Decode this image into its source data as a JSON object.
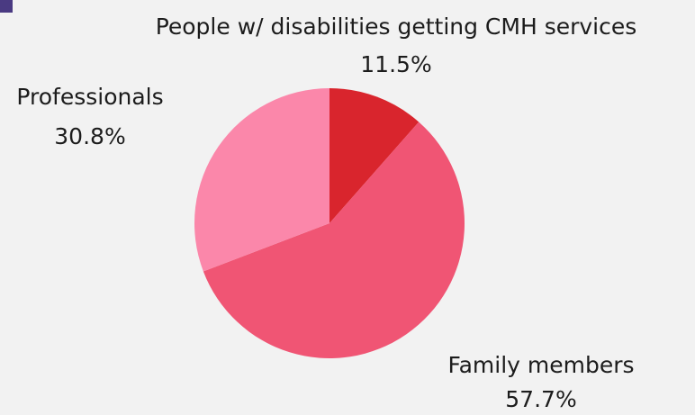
{
  "chart_data": {
    "type": "pie",
    "title": "",
    "slices": [
      {
        "label": "People w/ disabilities getting CMH services",
        "value": 11.5,
        "value_label": "11.5%",
        "color": "#d9252d"
      },
      {
        "label": "Family members",
        "value": 57.7,
        "value_label": "57.7%",
        "color": "#f05574"
      },
      {
        "label": "Professionals",
        "value": 30.8,
        "value_label": "30.8%",
        "color": "#fb87aa"
      }
    ],
    "start_angle": "top",
    "direction": "clockwise"
  },
  "colors": {
    "background": "#f2f2f2",
    "corner_mark": "#4a3a82",
    "label_text": "#1c1c1c"
  }
}
